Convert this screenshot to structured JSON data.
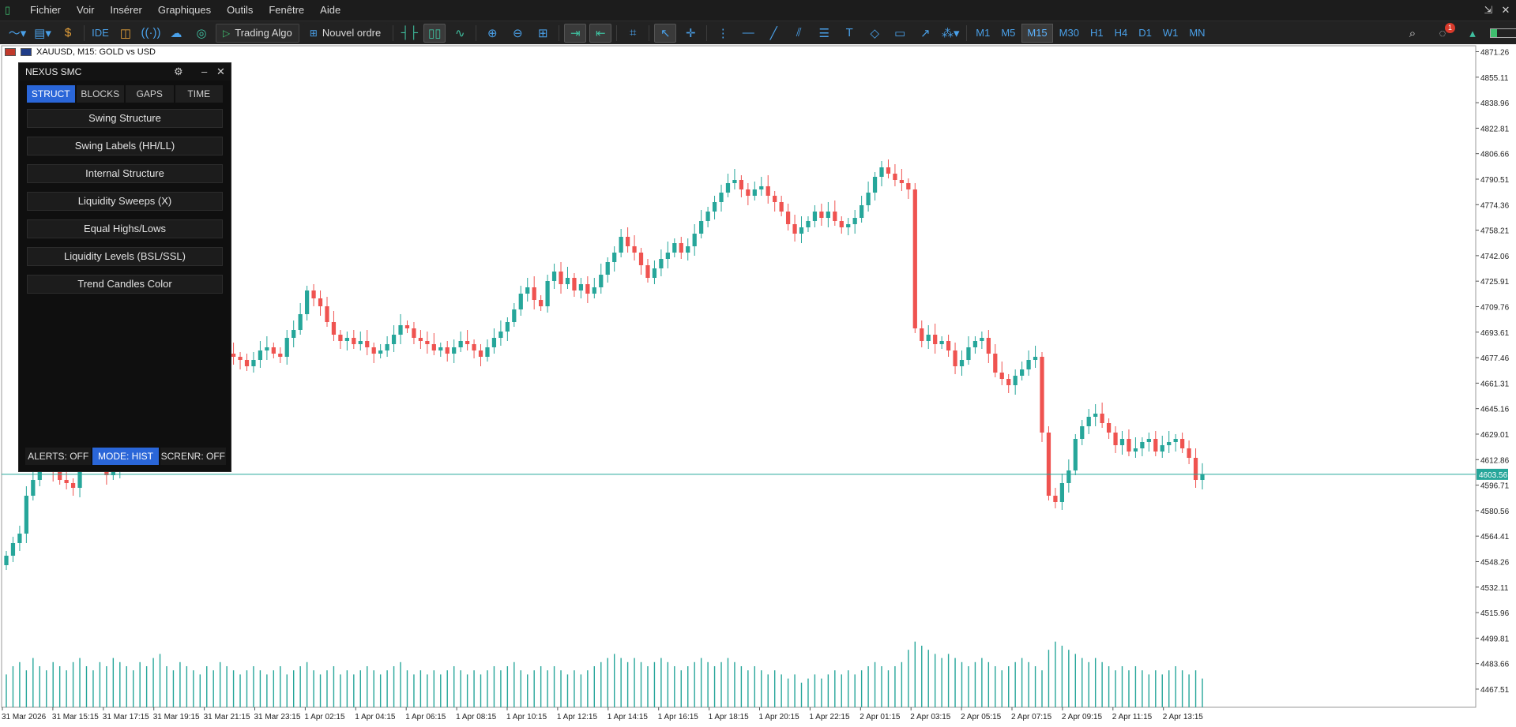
{
  "menubar": {
    "items": [
      "Fichier",
      "Voir",
      "Insérer",
      "Graphiques",
      "Outils",
      "Fenêtre",
      "Aide"
    ]
  },
  "toolbar": {
    "ide_label": "IDE",
    "trading_algo_label": "Trading Algo",
    "new_order_label": "Nouvel ordre",
    "timeframes": [
      "M1",
      "M5",
      "M15",
      "M30",
      "H1",
      "H4",
      "D1",
      "W1",
      "MN"
    ],
    "active_timeframe": "M15",
    "notification_count": "1"
  },
  "chart": {
    "symbol_label": "XAUUSD, M15:  GOLD vs USD",
    "current_price": "4603.56",
    "price_ticks": [
      "4871.26",
      "4855.11",
      "4838.96",
      "4822.81",
      "4806.66",
      "4790.51",
      "4774.36",
      "4758.21",
      "4742.06",
      "4725.91",
      "4709.76",
      "4693.61",
      "4677.46",
      "4661.31",
      "4645.16",
      "4629.01",
      "4612.86",
      "4596.71",
      "4580.56",
      "4564.41",
      "4548.26",
      "4532.11",
      "4515.96",
      "4499.81",
      "4483.66",
      "4467.51"
    ],
    "time_labels": [
      "31 Mar 2026",
      "31 Mar 15:15",
      "31 Mar 17:15",
      "31 Mar 19:15",
      "31 Mar 21:15",
      "31 Mar 23:15",
      "1 Apr 02:15",
      "1 Apr 04:15",
      "1 Apr 06:15",
      "1 Apr 08:15",
      "1 Apr 10:15",
      "1 Apr 12:15",
      "1 Apr 14:15",
      "1 Apr 16:15",
      "1 Apr 18:15",
      "1 Apr 20:15",
      "1 Apr 22:15",
      "2 Apr 01:15",
      "2 Apr 03:15",
      "2 Apr 05:15",
      "2 Apr 07:15",
      "2 Apr 09:15",
      "2 Apr 11:15",
      "2 Apr 13:15"
    ],
    "colors": {
      "bull": "#26a69a",
      "bear": "#ef5350",
      "price_line": "#26a69a",
      "volume": "#26a69a"
    }
  },
  "chart_data": {
    "type": "candlestick",
    "symbol": "XAUUSD",
    "timeframe": "M15",
    "y_range": [
      4456.0,
      4876.0
    ],
    "closes": [
      4552,
      4560,
      4566,
      4590,
      4600,
      4610,
      4612,
      4605,
      4600,
      4598,
      4595,
      4608,
      4612,
      4618,
      4610,
      4603,
      4605,
      4612,
      4618,
      4625,
      4630,
      4635,
      4642,
      4650,
      4656,
      4662,
      4668,
      4672,
      4675,
      4678,
      4684,
      4690,
      4684,
      4680,
      4678,
      4676,
      4672,
      4676,
      4682,
      4684,
      4680,
      4678,
      4690,
      4695,
      4705,
      4720,
      4715,
      4710,
      4700,
      4692,
      4688,
      4690,
      4686,
      4688,
      4684,
      4680,
      4682,
      4686,
      4692,
      4698,
      4696,
      4690,
      4688,
      4686,
      4682,
      4684,
      4680,
      4684,
      4688,
      4686,
      4682,
      4678,
      4684,
      4690,
      4694,
      4700,
      4708,
      4718,
      4722,
      4714,
      4710,
      4726,
      4732,
      4724,
      4728,
      4720,
      4724,
      4718,
      4722,
      4730,
      4738,
      4744,
      4754,
      4748,
      4744,
      4736,
      4728,
      4734,
      4740,
      4744,
      4750,
      4744,
      4748,
      4756,
      4764,
      4770,
      4776,
      4782,
      4788,
      4790,
      4784,
      4780,
      4784,
      4786,
      4780,
      4776,
      4770,
      4762,
      4756,
      4760,
      4764,
      4770,
      4766,
      4770,
      4764,
      4760,
      4762,
      4766,
      4774,
      4782,
      4792,
      4798,
      4794,
      4790,
      4788,
      4784,
      4696,
      4688,
      4692,
      4686,
      4688,
      4682,
      4672,
      4676,
      4684,
      4688,
      4690,
      4680,
      4668,
      4664,
      4660,
      4666,
      4670,
      4676,
      4678,
      4630,
      4590,
      4586,
      4598,
      4606,
      4626,
      4634,
      4640,
      4642,
      4636,
      4630,
      4622,
      4626,
      4618,
      4620,
      4624,
      4626,
      4618,
      4622,
      4624,
      4626,
      4620,
      4614,
      4600,
      4603.56
    ],
    "volumes": [
      8,
      10,
      11,
      9,
      12,
      10,
      9,
      11,
      10,
      9,
      11,
      12,
      10,
      9,
      11,
      10,
      12,
      11,
      10,
      9,
      11,
      10,
      12,
      13,
      10,
      9,
      11,
      10,
      9,
      8,
      10,
      9,
      11,
      10,
      9,
      8,
      9,
      10,
      9,
      8,
      9,
      10,
      8,
      9,
      10,
      11,
      9,
      8,
      9,
      10,
      8,
      9,
      8,
      9,
      10,
      9,
      8,
      9,
      10,
      11,
      9,
      8,
      9,
      8,
      9,
      8,
      9,
      10,
      9,
      8,
      9,
      8,
      9,
      10,
      9,
      10,
      11,
      9,
      8,
      9,
      10,
      9,
      10,
      9,
      8,
      9,
      8,
      9,
      10,
      11,
      12,
      13,
      12,
      11,
      12,
      11,
      10,
      11,
      12,
      11,
      10,
      9,
      10,
      11,
      12,
      11,
      10,
      11,
      12,
      11,
      10,
      9,
      10,
      9,
      8,
      9,
      8,
      7,
      8,
      6,
      7,
      8,
      7,
      8,
      9,
      8,
      9,
      8,
      9,
      10,
      11,
      10,
      9,
      10,
      11,
      14,
      16,
      15,
      14,
      13,
      12,
      13,
      12,
      11,
      10,
      11,
      12,
      11,
      10,
      9,
      10,
      11,
      12,
      11,
      10,
      9,
      14,
      16,
      15,
      14,
      13,
      12,
      11,
      12,
      11,
      10,
      9,
      10,
      9,
      10,
      9,
      8,
      9,
      8,
      9,
      10,
      9,
      8,
      9,
      7
    ]
  },
  "panel": {
    "title": "NEXUS SMC",
    "tabs": [
      "STRUCT",
      "BLOCKS",
      "GAPS",
      "TIME"
    ],
    "active_tab": "STRUCT",
    "buttons": [
      "Swing Structure",
      "Swing Labels (HH/LL)",
      "Internal Structure",
      "Liquidity Sweeps (X)",
      "Equal Highs/Lows",
      "Liquidity Levels (BSL/SSL)",
      "Trend Candles Color"
    ],
    "footer": [
      "ALERTS: OFF",
      "MODE: HIST",
      "SCRENR: OFF"
    ]
  }
}
